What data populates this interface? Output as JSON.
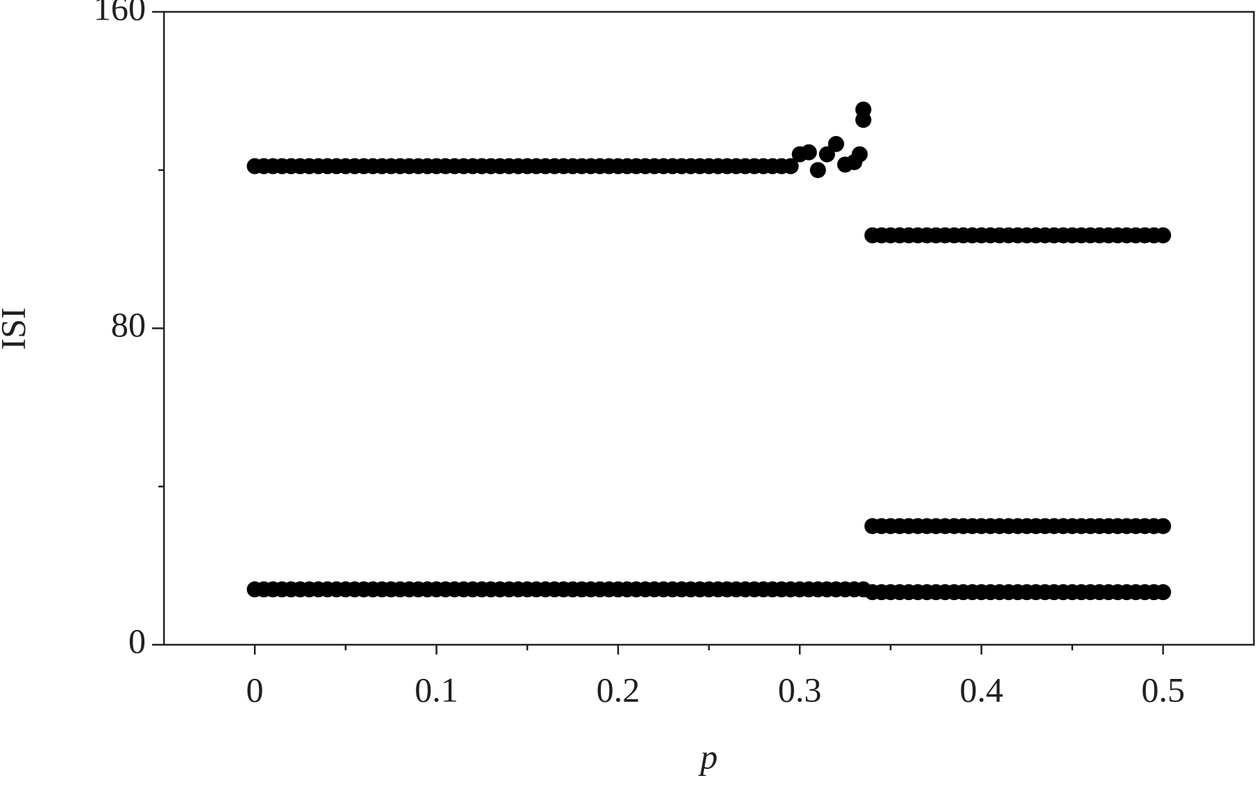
{
  "chart_data": {
    "type": "scatter",
    "xlabel": "p",
    "ylabel": "ISI",
    "xlim": [
      -0.05,
      0.55
    ],
    "ylim": [
      0,
      160
    ],
    "xticks": [
      0,
      0.1,
      0.2,
      0.3,
      0.4,
      0.5
    ],
    "yticks": [
      0,
      80,
      160
    ],
    "xminorticks": [
      0.05,
      0.15,
      0.25,
      0.35,
      0.45
    ],
    "yminorticks": [
      40,
      120
    ],
    "color": "#000000",
    "series": [
      {
        "x": [
          0,
          0.005,
          0.01,
          0.015,
          0.02,
          0.025,
          0.03,
          0.035,
          0.04,
          0.045,
          0.05,
          0.055,
          0.06,
          0.065,
          0.07,
          0.075,
          0.08,
          0.085,
          0.09,
          0.095,
          0.1,
          0.105,
          0.11,
          0.115,
          0.12,
          0.125,
          0.13,
          0.135,
          0.14,
          0.145,
          0.15,
          0.155,
          0.16,
          0.165,
          0.17,
          0.175,
          0.18,
          0.185,
          0.19,
          0.195,
          0.2,
          0.205,
          0.21,
          0.215,
          0.22,
          0.225,
          0.23,
          0.235,
          0.24,
          0.245,
          0.25,
          0.255,
          0.26,
          0.265,
          0.27,
          0.275,
          0.28,
          0.285,
          0.29,
          0.295,
          0.3,
          0.305,
          0.31,
          0.315,
          0.32,
          0.325,
          0.33,
          0.333,
          0.335,
          0.335,
          0.34,
          0.345,
          0.35,
          0.355,
          0.36,
          0.365,
          0.37,
          0.375,
          0.38,
          0.385,
          0.39,
          0.395,
          0.4,
          0.405,
          0.41,
          0.415,
          0.42,
          0.425,
          0.43,
          0.435,
          0.44,
          0.445,
          0.45,
          0.455,
          0.46,
          0.465,
          0.47,
          0.475,
          0.48,
          0.485,
          0.49,
          0.495,
          0.5
        ],
        "values": [
          121,
          121,
          121,
          121,
          121,
          121,
          121,
          121,
          121,
          121,
          121,
          121,
          121,
          121,
          121,
          121,
          121,
          121,
          121,
          121,
          121,
          121,
          121,
          121,
          121,
          121,
          121,
          121,
          121,
          121,
          121,
          121,
          121,
          121,
          121,
          121,
          121,
          121,
          121,
          121,
          121,
          121,
          121,
          121,
          121,
          121,
          121,
          121,
          121,
          121,
          121,
          121,
          121,
          121,
          121,
          121,
          121,
          121,
          121,
          121,
          124,
          124.5,
          120,
          124,
          126.6,
          121.4,
          122,
          124,
          132.7,
          135.3,
          103.5,
          103.5,
          103.5,
          103.5,
          103.5,
          103.5,
          103.5,
          103.5,
          103.5,
          103.5,
          103.5,
          103.5,
          103.5,
          103.5,
          103.5,
          103.5,
          103.5,
          103.5,
          103.5,
          103.5,
          103.5,
          103.5,
          103.5,
          103.5,
          103.5,
          103.5,
          103.5,
          103.5,
          103.5,
          103.5,
          103.5,
          103.5,
          103.5
        ]
      },
      {
        "x": [
          0.34,
          0.345,
          0.35,
          0.355,
          0.36,
          0.365,
          0.37,
          0.375,
          0.38,
          0.385,
          0.39,
          0.395,
          0.4,
          0.405,
          0.41,
          0.415,
          0.42,
          0.425,
          0.43,
          0.435,
          0.44,
          0.445,
          0.45,
          0.455,
          0.46,
          0.465,
          0.47,
          0.475,
          0.48,
          0.485,
          0.49,
          0.495,
          0.5
        ],
        "values": [
          30,
          30,
          30,
          30,
          30,
          30,
          30,
          30,
          30,
          30,
          30,
          30,
          30,
          30,
          30,
          30,
          30,
          30,
          30,
          30,
          30,
          30,
          30,
          30,
          30,
          30,
          30,
          30,
          30,
          30,
          30,
          30,
          30
        ]
      },
      {
        "x": [
          0,
          0.005,
          0.01,
          0.015,
          0.02,
          0.025,
          0.03,
          0.035,
          0.04,
          0.045,
          0.05,
          0.055,
          0.06,
          0.065,
          0.07,
          0.075,
          0.08,
          0.085,
          0.09,
          0.095,
          0.1,
          0.105,
          0.11,
          0.115,
          0.12,
          0.125,
          0.13,
          0.135,
          0.14,
          0.145,
          0.15,
          0.155,
          0.16,
          0.165,
          0.17,
          0.175,
          0.18,
          0.185,
          0.19,
          0.195,
          0.2,
          0.205,
          0.21,
          0.215,
          0.22,
          0.225,
          0.23,
          0.235,
          0.24,
          0.245,
          0.25,
          0.255,
          0.26,
          0.265,
          0.27,
          0.275,
          0.28,
          0.285,
          0.29,
          0.295,
          0.3,
          0.305,
          0.31,
          0.315,
          0.32,
          0.325,
          0.33,
          0.335,
          0.34,
          0.345,
          0.35,
          0.355,
          0.36,
          0.365,
          0.37,
          0.375,
          0.38,
          0.385,
          0.39,
          0.395,
          0.4,
          0.405,
          0.41,
          0.415,
          0.42,
          0.425,
          0.43,
          0.435,
          0.44,
          0.445,
          0.45,
          0.455,
          0.46,
          0.465,
          0.47,
          0.475,
          0.48,
          0.485,
          0.49,
          0.495,
          0.5
        ],
        "values": [
          14,
          14,
          14,
          14,
          14,
          14,
          14,
          14,
          14,
          14,
          14,
          14,
          14,
          14,
          14,
          14,
          14,
          14,
          14,
          14,
          14,
          14,
          14,
          14,
          14,
          14,
          14,
          14,
          14,
          14,
          14,
          14,
          14,
          14,
          14,
          14,
          14,
          14,
          14,
          14,
          14,
          14,
          14,
          14,
          14,
          14,
          14,
          14,
          14,
          14,
          14,
          14,
          14,
          14,
          14,
          14,
          14,
          14,
          14,
          14,
          14,
          14,
          14,
          14,
          14,
          14,
          14,
          14,
          13.3,
          13.3,
          13.3,
          13.3,
          13.3,
          13.3,
          13.3,
          13.3,
          13.3,
          13.3,
          13.3,
          13.3,
          13.3,
          13.3,
          13.3,
          13.3,
          13.3,
          13.3,
          13.3,
          13.3,
          13.3,
          13.3,
          13.3,
          13.3,
          13.3,
          13.3,
          13.3,
          13.3,
          13.3,
          13.3,
          13.3,
          13.3,
          13.3
        ]
      }
    ]
  }
}
